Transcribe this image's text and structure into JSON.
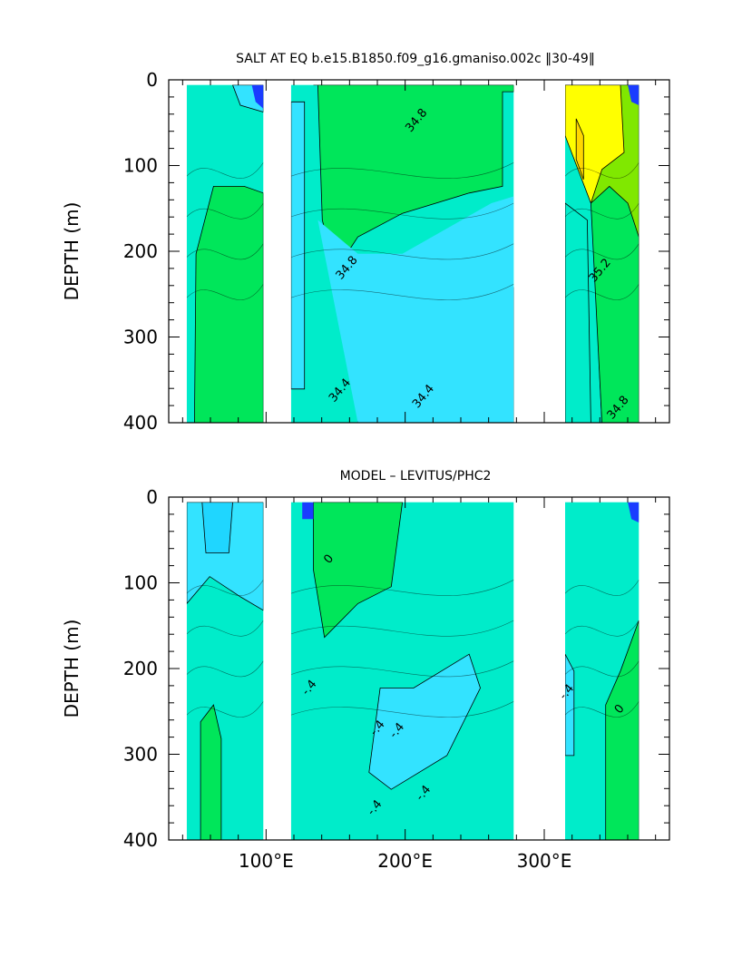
{
  "chart_data": [
    {
      "type": "contour",
      "title": "SALT AT EQ b.e15.B1850.f09_g16.gmaniso.002c ‖30-49‖",
      "xlabel": "",
      "ylabel": "DEPTH (m)",
      "xlim": [
        30,
        390
      ],
      "ylim": [
        400,
        0
      ],
      "x_ticks": [
        100,
        200,
        300
      ],
      "x_tick_labels": [
        "",
        "",
        ""
      ],
      "y_ticks": [
        0,
        100,
        200,
        300,
        400
      ],
      "y_tick_labels": [
        "0",
        "100",
        "200",
        "300",
        "400"
      ],
      "basin_columns": [
        {
          "x_start": 43,
          "x_end": 98
        },
        {
          "x_start": 118,
          "x_end": 278
        },
        {
          "x_start": 315,
          "x_end": 368
        }
      ],
      "colors": {
        "fresh": "#33e3ff",
        "mid": "#00ecca",
        "green": "#00e65a",
        "lime": "#80e800",
        "yellow": "#ffff00",
        "orange": "#ffd700",
        "deep": "#1a3cff"
      },
      "contour_labels": [
        {
          "text": "34.8",
          "x": 210,
          "depth": 50
        },
        {
          "text": "34.8",
          "x": 160,
          "depth": 222
        },
        {
          "text": "34.4",
          "x": 155,
          "depth": 365
        },
        {
          "text": "34.4",
          "x": 215,
          "depth": 372
        },
        {
          "text": "35.2",
          "x": 342,
          "depth": 225
        },
        {
          "text": "34.8",
          "x": 355,
          "depth": 385
        }
      ]
    },
    {
      "type": "contour",
      "title": "MODEL – LEVITUS/PHC2",
      "xlabel": "",
      "ylabel": "DEPTH (m)",
      "xlim": [
        30,
        390
      ],
      "ylim": [
        400,
        0
      ],
      "x_ticks": [
        100,
        200,
        300
      ],
      "x_tick_labels": [
        "100°E",
        "200°E",
        "300°E"
      ],
      "y_ticks": [
        0,
        100,
        200,
        300,
        400
      ],
      "y_tick_labels": [
        "0",
        "100",
        "200",
        "300",
        "400"
      ],
      "basin_columns": [
        {
          "x_start": 43,
          "x_end": 98
        },
        {
          "x_start": 118,
          "x_end": 278
        },
        {
          "x_start": 315,
          "x_end": 368
        }
      ],
      "colors": {
        "fresh": "#33e3ff",
        "mid": "#00ecca",
        "green": "#00e65a",
        "deep": "#1a3cff"
      },
      "contour_labels": [
        {
          "text": "0",
          "x": 147,
          "depth": 75
        },
        {
          "text": "-.4",
          "x": 133,
          "depth": 225
        },
        {
          "text": "-.4",
          "x": 182,
          "depth": 272
        },
        {
          "text": "-.4",
          "x": 196,
          "depth": 275
        },
        {
          "text": "-.4",
          "x": 215,
          "depth": 348
        },
        {
          "text": "-.4",
          "x": 180,
          "depth": 365
        },
        {
          "text": "-.4",
          "x": 318,
          "depth": 230
        },
        {
          "text": "0",
          "x": 356,
          "depth": 250
        }
      ]
    }
  ]
}
